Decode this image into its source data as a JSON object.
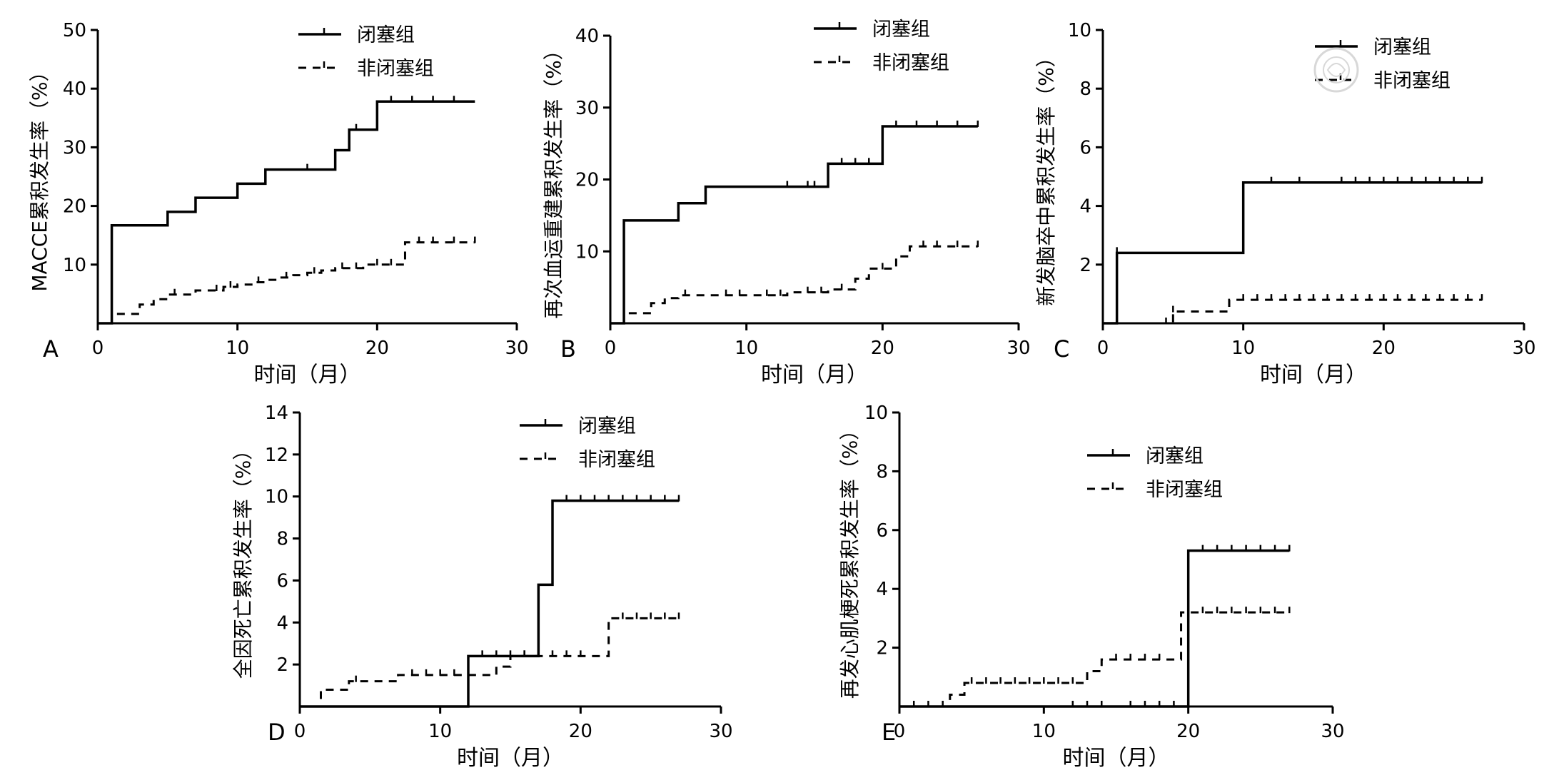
{
  "chart_data": [
    {
      "type": "line",
      "panel": "A",
      "ylabel": "MACCE累积发生率（%）",
      "xlabel": "时间（月）",
      "xlim": [
        0,
        30
      ],
      "ylim": [
        0,
        50
      ],
      "xticks": [
        0,
        10,
        20,
        30
      ],
      "yticks": [
        10,
        20,
        30,
        40,
        50
      ],
      "legend": {
        "placement": "top-right"
      },
      "series": [
        {
          "name": "闭塞组",
          "style": "solid",
          "x": [
            1,
            5,
            7,
            10,
            12,
            17,
            18,
            20,
            27
          ],
          "y": [
            16.7,
            19,
            21.4,
            23.8,
            26.2,
            29.5,
            33,
            37.8,
            37.8
          ],
          "censored": [
            15,
            18.5,
            21,
            22.5,
            24,
            25.5
          ]
        },
        {
          "name": "非闭塞组",
          "style": "dashed",
          "x": [
            1,
            3,
            4,
            5,
            7,
            9,
            10,
            11,
            12,
            13,
            14,
            15,
            16,
            17,
            19,
            22,
            27
          ],
          "y": [
            1.6,
            3.2,
            4.1,
            4.9,
            5.6,
            6.2,
            6.6,
            7,
            7.4,
            7.8,
            8.2,
            8.6,
            9,
            9.4,
            10,
            13.8,
            13.8
          ],
          "censored": [
            5.5,
            8.5,
            9.5,
            11.5,
            13.5,
            15.5,
            17.5,
            18.5,
            20,
            21,
            23,
            24,
            25.5,
            27
          ]
        }
      ]
    },
    {
      "type": "line",
      "panel": "B",
      "ylabel": "再次血运重建累积发生率（%）",
      "xlabel": "时间（月）",
      "xlim": [
        0,
        30
      ],
      "ylim": [
        0,
        40
      ],
      "xticks": [
        0,
        10,
        20,
        30
      ],
      "yticks": [
        10,
        20,
        30,
        40
      ],
      "legend": {
        "placement": "top-right"
      },
      "series": [
        {
          "name": "闭塞组",
          "style": "solid",
          "x": [
            1,
            5,
            7,
            16,
            20,
            27
          ],
          "y": [
            14.3,
            16.7,
            19.0,
            22.2,
            27.4,
            27.4
          ],
          "censored": [
            13,
            14.5,
            15,
            17,
            18,
            19,
            21,
            22.5,
            24,
            25.5,
            27
          ]
        },
        {
          "name": "非闭塞组",
          "style": "dashed",
          "x": [
            1,
            3,
            4,
            5,
            13,
            16,
            18,
            19,
            21,
            22,
            27
          ],
          "y": [
            1.4,
            2.8,
            3.5,
            3.9,
            4.3,
            4.7,
            6.2,
            7.6,
            9.3,
            10.7,
            10.7
          ],
          "censored": [
            5.5,
            8.5,
            9.5,
            11.5,
            12.5,
            14.5,
            15.5,
            17,
            20,
            23,
            24,
            25.5,
            27
          ]
        }
      ]
    },
    {
      "type": "line",
      "panel": "C",
      "ylabel": "新发脑卒中累积发生率（%）",
      "xlabel": "时间（月）",
      "xlim": [
        0,
        30
      ],
      "ylim": [
        0,
        10
      ],
      "xticks": [
        0,
        10,
        20,
        30
      ],
      "yticks": [
        2,
        4,
        6,
        8,
        10
      ],
      "legend": {
        "placement": "top-right"
      },
      "series": [
        {
          "name": "闭塞组",
          "style": "solid",
          "x": [
            1,
            10,
            27
          ],
          "y": [
            2.4,
            4.8,
            4.8
          ],
          "censored": [
            1,
            12,
            14,
            17,
            18,
            19,
            20,
            21,
            22,
            23,
            24,
            25,
            26,
            27
          ]
        },
        {
          "name": "非闭塞组",
          "style": "dashed",
          "x": [
            5,
            9,
            27
          ],
          "y": [
            0.4,
            0.8,
            0.8
          ],
          "censored": [
            4.5,
            5,
            10,
            11,
            12,
            13,
            14,
            15,
            16,
            17,
            18,
            19,
            20,
            21,
            22,
            23,
            24,
            25,
            26,
            27
          ]
        }
      ]
    },
    {
      "type": "line",
      "panel": "D",
      "ylabel": "全因死亡累积发生率（%）",
      "xlabel": "时间（月）",
      "xlim": [
        0,
        30
      ],
      "ylim": [
        0,
        14
      ],
      "xticks": [
        0,
        10,
        20,
        30
      ],
      "yticks": [
        2,
        4,
        6,
        8,
        10,
        12,
        14
      ],
      "legend": {
        "placement": "top-right"
      },
      "series": [
        {
          "name": "闭塞组",
          "style": "solid",
          "x": [
            12,
            17,
            18,
            27
          ],
          "y": [
            2.4,
            5.8,
            9.8,
            9.8
          ],
          "censored": [
            13,
            14,
            15,
            16,
            19,
            20,
            21,
            22,
            23,
            24,
            25,
            26,
            27
          ]
        },
        {
          "name": "非闭塞组",
          "style": "dashed",
          "x": [
            1.5,
            3.5,
            7,
            14,
            15,
            22,
            27
          ],
          "y": [
            0.8,
            1.2,
            1.5,
            1.9,
            2.4,
            4.2,
            4.2
          ],
          "censored": [
            4,
            8,
            9,
            10,
            11,
            16,
            17,
            18,
            19,
            20,
            23,
            24,
            25,
            26,
            27
          ]
        }
      ]
    },
    {
      "type": "line",
      "panel": "E",
      "ylabel": "再发心肌梗死累积发生率（%）",
      "xlabel": "时间（月）",
      "xlim": [
        0,
        30
      ],
      "ylim": [
        0,
        10
      ],
      "xticks": [
        0,
        10,
        20,
        30
      ],
      "yticks": [
        2,
        4,
        6,
        8,
        10
      ],
      "legend": {
        "placement": "top-right"
      },
      "series": [
        {
          "name": "闭塞组",
          "style": "solid",
          "x": [
            20,
            27
          ],
          "y": [
            5.3,
            5.3
          ],
          "censored": [
            1,
            2,
            3,
            12,
            13,
            14,
            16,
            17,
            18,
            19,
            21,
            22,
            23,
            24,
            25,
            26,
            27
          ]
        },
        {
          "name": "非闭塞组",
          "style": "dashed",
          "x": [
            3.5,
            4.5,
            13,
            14,
            19.5,
            27
          ],
          "y": [
            0.4,
            0.8,
            1.2,
            1.6,
            3.2,
            3.2
          ],
          "censored": [
            5,
            6,
            7,
            8,
            9,
            10,
            11,
            12,
            15,
            16,
            17,
            18,
            21,
            22,
            23,
            24,
            25,
            26,
            27
          ]
        }
      ]
    }
  ]
}
